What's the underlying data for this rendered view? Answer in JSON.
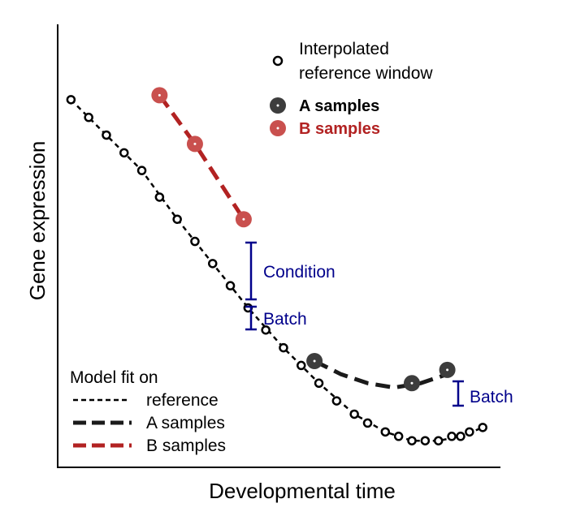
{
  "colors": {
    "reference": "#000000",
    "a_samples": "#1a1a1a",
    "a_points": "#3d3d3d",
    "b_samples": "#b22222",
    "b_points": "#c9504e",
    "annotation": "#00008b",
    "axis": "#000000"
  },
  "axes": {
    "xlabel": "Developmental time",
    "ylabel": "Gene expression"
  },
  "top_legend": {
    "interpolated_line1": "Interpolated",
    "interpolated_line2": "reference window",
    "a_samples": "A samples",
    "b_samples": "B samples"
  },
  "model_legend": {
    "title": "Model fit on",
    "reference": "reference",
    "a_samples": "A samples",
    "b_samples": "B samples"
  },
  "annotations": {
    "condition": "Condition",
    "batch_left": "Batch",
    "batch_right": "Batch"
  },
  "chart_data": {
    "type": "scatter",
    "xlabel": "Developmental time",
    "ylabel": "Gene expression",
    "axis_ticks": false,
    "series": [
      {
        "name": "Interpolated reference window",
        "marker": "open-circle",
        "x": [
          0.03,
          0.07,
          0.11,
          0.15,
          0.19,
          0.23,
          0.27,
          0.31,
          0.35,
          0.39,
          0.43,
          0.47,
          0.51,
          0.55,
          0.59,
          0.63,
          0.67,
          0.7,
          0.74,
          0.77,
          0.8,
          0.83,
          0.86,
          0.89,
          0.91,
          0.93,
          0.96
        ],
        "y": [
          0.83,
          0.79,
          0.75,
          0.71,
          0.67,
          0.61,
          0.56,
          0.51,
          0.46,
          0.41,
          0.36,
          0.31,
          0.27,
          0.23,
          0.19,
          0.15,
          0.12,
          0.1,
          0.08,
          0.07,
          0.06,
          0.06,
          0.06,
          0.07,
          0.07,
          0.08,
          0.09
        ]
      },
      {
        "name": "A samples",
        "marker": "filled-circle",
        "x": [
          0.58,
          0.8,
          0.88
        ],
        "y": [
          0.24,
          0.19,
          0.22
        ]
      },
      {
        "name": "B samples",
        "marker": "filled-circle",
        "x": [
          0.23,
          0.31,
          0.42
        ],
        "y": [
          0.84,
          0.73,
          0.56
        ]
      }
    ],
    "fits": [
      {
        "name": "reference",
        "style": "short-dash",
        "x": [
          0.03,
          0.11,
          0.19,
          0.27,
          0.35,
          0.43,
          0.51,
          0.59,
          0.67,
          0.74,
          0.8,
          0.86,
          0.91,
          0.96
        ],
        "y": [
          0.83,
          0.75,
          0.67,
          0.56,
          0.46,
          0.36,
          0.27,
          0.19,
          0.12,
          0.08,
          0.06,
          0.06,
          0.07,
          0.09
        ]
      },
      {
        "name": "A samples",
        "style": "long-dash",
        "x": [
          0.58,
          0.64,
          0.7,
          0.76,
          0.82,
          0.88
        ],
        "y": [
          0.24,
          0.21,
          0.19,
          0.18,
          0.19,
          0.21
        ]
      },
      {
        "name": "B samples",
        "style": "long-dash",
        "x": [
          0.23,
          0.31,
          0.42
        ],
        "y": [
          0.84,
          0.73,
          0.56
        ]
      }
    ]
  }
}
